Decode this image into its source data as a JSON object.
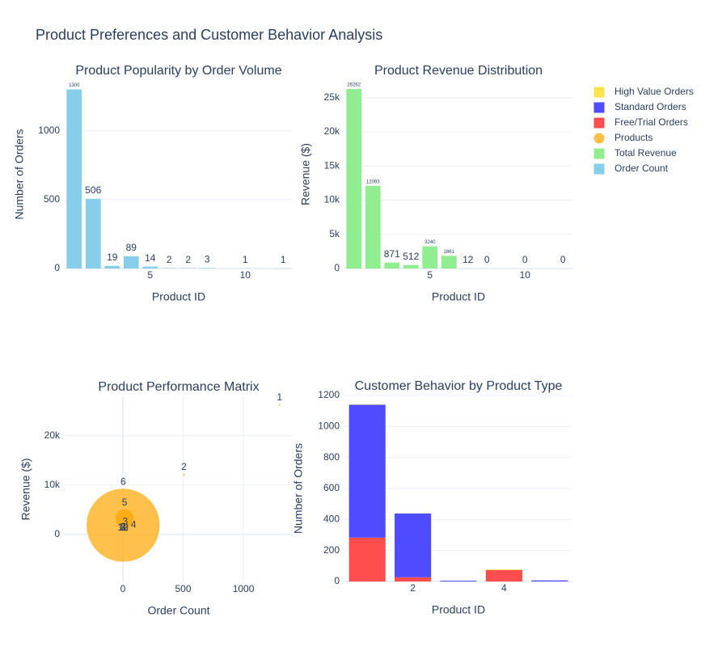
{
  "title": "Product Preferences and Customer Behavior Analysis",
  "chart_data": [
    {
      "type": "bar",
      "title": "Product Popularity by Order Volume",
      "x_label": "Product ID",
      "y_label": "Number of Orders",
      "x": [
        1,
        2,
        3,
        4,
        5,
        6,
        7,
        8,
        10,
        12
      ],
      "series": [
        {
          "name": "Order Count",
          "color": "#87ceeb",
          "values": [
            1300,
            506,
            19,
            89,
            14,
            2,
            2,
            3,
            1,
            1
          ]
        }
      ],
      "xlim": [
        0.5,
        12.5
      ],
      "xticks": [
        5,
        10
      ],
      "ylim": [
        0,
        1368
      ],
      "yticks": [
        0,
        500,
        1000
      ],
      "grid": true,
      "value_text": true
    },
    {
      "type": "bar",
      "title": "Product Revenue Distribution",
      "x_label": "Product ID",
      "y_label": "Revenue ($)",
      "x": [
        1,
        2,
        3,
        4,
        5,
        6,
        7,
        8,
        10,
        12
      ],
      "series": [
        {
          "name": "Total Revenue",
          "color": "#90ee90",
          "values": [
            26262,
            12093,
            871,
            512,
            3240,
            1861,
            12,
            0,
            0,
            0
          ]
        }
      ],
      "xlim": [
        0.5,
        12.5
      ],
      "xticks": [
        5,
        10
      ],
      "ylim": [
        0,
        27575
      ],
      "yticks": [
        0,
        {
          "value": 5000,
          "label": "5k"
        },
        {
          "value": 10000,
          "label": "10k"
        },
        {
          "value": 15000,
          "label": "15k"
        },
        {
          "value": 20000,
          "label": "20k"
        },
        {
          "value": 25000,
          "label": "25k"
        }
      ],
      "grid": true,
      "value_text": true
    },
    {
      "type": "scatter",
      "title": "Product Performance Matrix",
      "x_label": "Order Count",
      "y_label": "Revenue ($)",
      "series": [
        {
          "name": "Products",
          "color": "#ffa500",
          "x": [
            1300,
            506,
            19,
            89,
            14,
            2,
            2,
            3,
            1,
            1
          ],
          "values": [
            26262,
            12093,
            871,
            512,
            3240,
            1861,
            12,
            0,
            0,
            0
          ],
          "sizes": [
            20.2,
            23.9,
            45.8,
            5.8,
            231.4,
            930.5,
            6,
            0,
            0,
            0
          ],
          "text": [
            1,
            2,
            3,
            4,
            5,
            6,
            7,
            8,
            10,
            12
          ]
        }
      ],
      "xlim": [
        -483,
        1409
      ],
      "xticks": [
        0,
        500,
        1000
      ],
      "ylim": [
        -9700,
        28000
      ],
      "yticks": [
        0,
        {
          "value": 10000,
          "label": "10k"
        },
        {
          "value": 20000,
          "label": "20k"
        }
      ],
      "grid": true,
      "zeroline": true
    },
    {
      "type": "bar",
      "title": "Customer Behavior by Product Type",
      "x_label": "Product ID",
      "y_label": "Number of Orders",
      "x": [
        1,
        2,
        3,
        4,
        5
      ],
      "barmode": "stack",
      "series": [
        {
          "name": "Free/Trial Orders",
          "color": "#ff4d4d",
          "values": [
            283,
            27,
            0,
            74,
            0
          ]
        },
        {
          "name": "Standard Orders",
          "color": "#4d4dff",
          "values": [
            857,
            412,
            5,
            0,
            7
          ]
        },
        {
          "name": "High Value Orders",
          "color": "#ffe34d",
          "values": [
            2,
            1,
            0,
            4,
            0
          ]
        }
      ],
      "xlim": [
        0.5,
        5.5
      ],
      "xticks": [
        2,
        4
      ],
      "ylim": [
        0,
        1200
      ],
      "yticks": [
        0,
        200,
        400,
        600,
        800,
        1000,
        1200
      ],
      "grid": true
    }
  ]
}
